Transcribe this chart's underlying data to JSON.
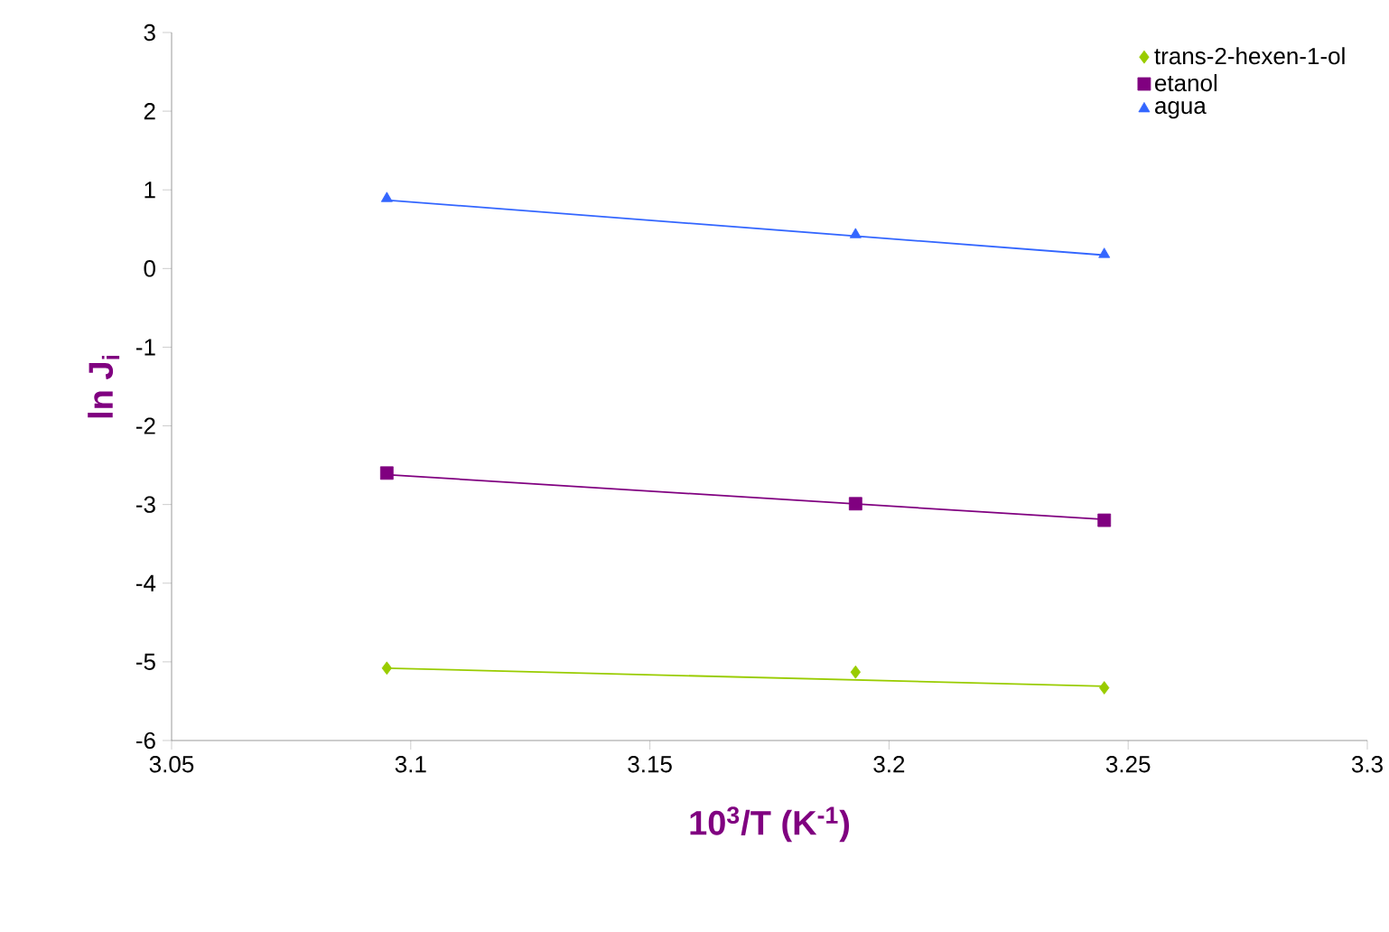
{
  "chart_data": {
    "type": "scatter",
    "xlabel": "10$^{3}$/T (K$^{-1}$)",
    "ylabel": "ln J$_{i}$",
    "xlim": [
      3.05,
      3.3
    ],
    "ylim": [
      -6,
      3
    ],
    "xticks": [
      3.05,
      3.1,
      3.15,
      3.2,
      3.25,
      3.3
    ],
    "yticks": [
      -6,
      -5,
      -4,
      -3,
      -2,
      -1,
      0,
      1,
      2,
      3
    ],
    "legend": "top right",
    "grid": false,
    "series": [
      {
        "name": "trans-2-hexen-1-ol",
        "type": "scatter",
        "marker": "diamond",
        "color": "#99cc00",
        "x": [
          3.095,
          3.193,
          3.245
        ],
        "values": [
          -5.08,
          -5.13,
          -5.33
        ]
      },
      {
        "name": "etanol",
        "type": "scatter",
        "marker": "square",
        "color": "#800080",
        "x": [
          3.095,
          3.193,
          3.245
        ],
        "values": [
          -2.6,
          -2.99,
          -3.2
        ]
      },
      {
        "name": "agua",
        "type": "scatter",
        "marker": "triangle",
        "color": "#3366ff",
        "x": [
          3.095,
          3.193,
          3.245
        ],
        "values": [
          0.89,
          0.43,
          0.18
        ]
      },
      {
        "type": "line",
        "color": "#99cc00",
        "x": [
          3.095,
          3.245
        ],
        "values": [
          -5.08,
          -5.31
        ]
      },
      {
        "type": "line",
        "color": "#800080",
        "x": [
          3.095,
          3.245
        ],
        "values": [
          -2.62,
          -3.19
        ]
      },
      {
        "type": "line",
        "color": "#3366ff",
        "x": [
          3.095,
          3.245
        ],
        "values": [
          0.87,
          0.17
        ]
      }
    ]
  }
}
